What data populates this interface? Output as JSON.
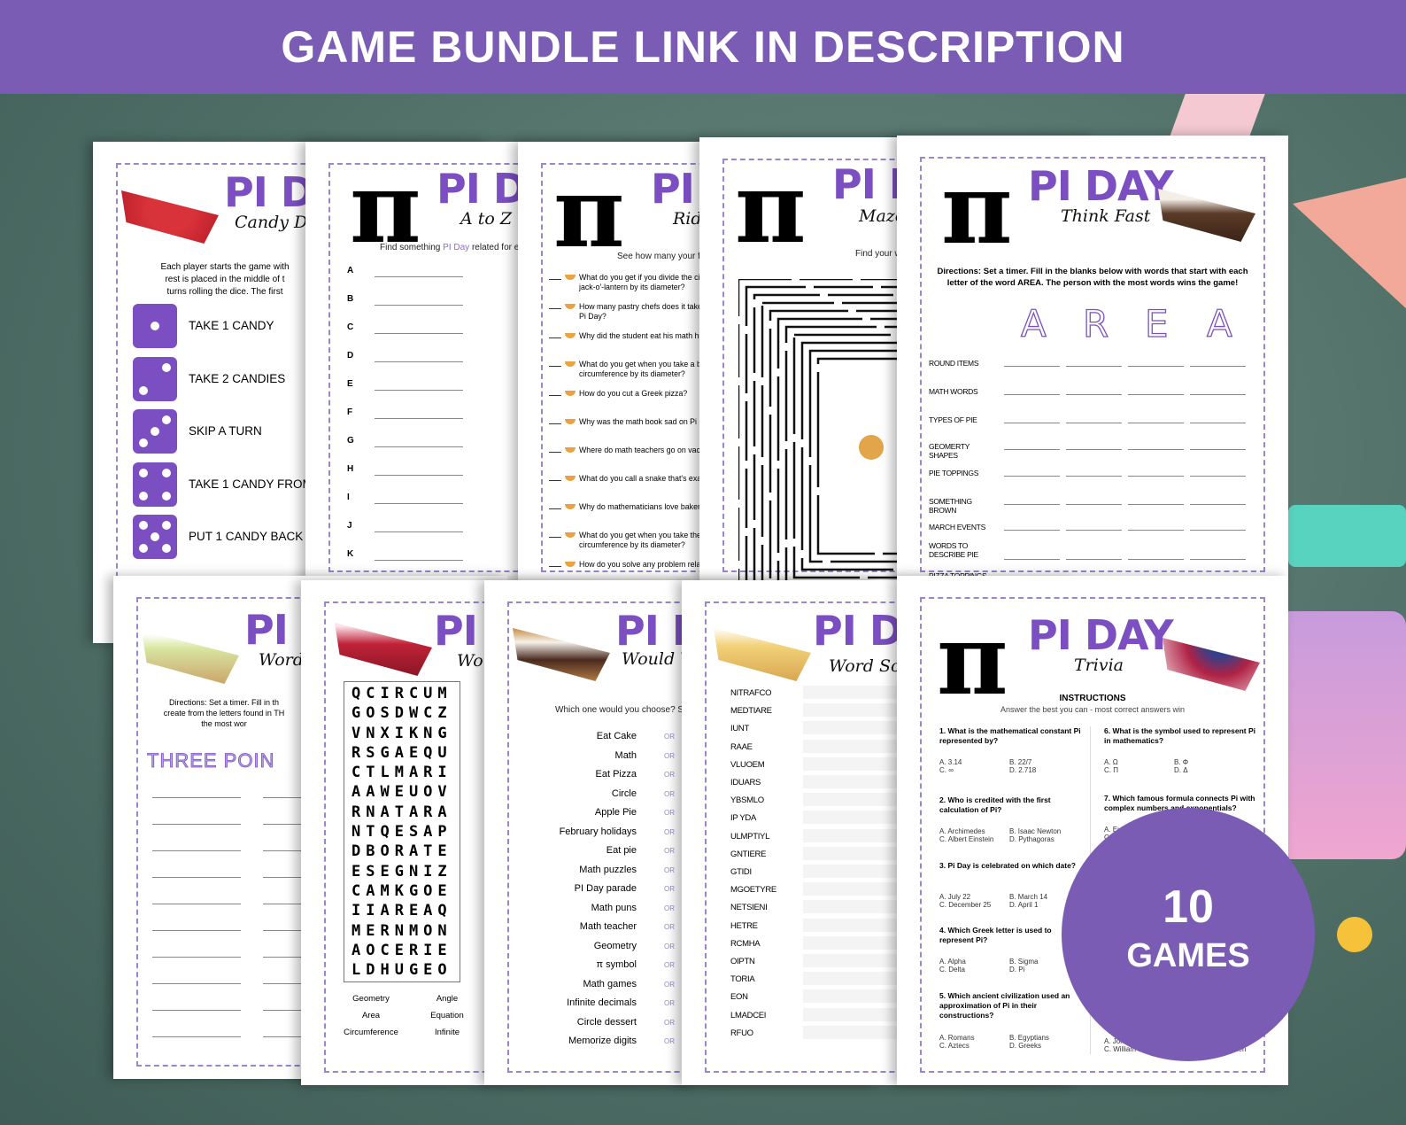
{
  "banner": {
    "text": "GAME BUNDLE LINK IN DESCRIPTION"
  },
  "badge": {
    "number": "10",
    "label": "GAMES"
  },
  "colors": {
    "banner": "#7b5cb5",
    "accent": "#7b4fc2",
    "background": "#4f6f67"
  },
  "icons": [
    "pi-symbol",
    "pie-slice-icon",
    "dice-icon",
    "maze",
    "calculator",
    "ruler",
    "push-pin"
  ],
  "candy_dice": {
    "title": "PI DAY",
    "subtitle": "Candy Dice",
    "intro": [
      "Each player starts the game with",
      "rest is placed in the middle of t",
      "turns rolling the dice. The first"
    ],
    "rules": [
      "TAKE 1 CANDY",
      "TAKE 2 CANDIES",
      "SKIP A TURN",
      "TAKE 1 CANDY FROM",
      "PUT 1 CANDY BACK"
    ]
  },
  "a_to_z": {
    "title": "PI DAY",
    "subtitle": "A to Z Ga",
    "intro_pre": "Find something ",
    "intro_hl": "PI Day",
    "intro_post": " related for e",
    "letters": [
      "A",
      "B",
      "C",
      "D",
      "E",
      "F",
      "G",
      "H",
      "I",
      "J",
      "K"
    ]
  },
  "riddles": {
    "title": "PI",
    "subtitle": "Riddl",
    "intro": "See how many your friend",
    "items": [
      "What do you get if you divide the circ|jack-o'-lantern by its diameter?",
      "How many pastry chefs does it take t|Pi Day?",
      "Why did the student eat his math ho",
      "What do you get when you take a bo|circumference by its diameter?",
      "How do you cut a Greek pizza?",
      "Why was the math book sad on Pi Da",
      "Where do math teachers go on vacat",
      "What do you call a snake that's exac",
      "Why do mathematicians love bakeri",
      "What do you get when you take the s|circumference by its diameter?",
      "How do you solve any problem relate"
    ]
  },
  "maze": {
    "title": "PI D",
    "subtitle": "Maze G",
    "intro": "Find your wa"
  },
  "think_fast": {
    "title": "PI DAY",
    "subtitle": "Think Fast",
    "directions": "Directions: Set a timer. Fill in the blanks below with words that start with each letter of the word AREA. The person with the most words wins the game!",
    "letters": [
      "A",
      "R",
      "E",
      "A"
    ],
    "categories": [
      "ROUND ITEMS",
      "MATH WORDS",
      "TYPES OF PIE",
      "GEOMERTY SHAPES",
      "PIE TOPPINGS",
      "SOMETHING BROWN",
      "MARCH EVENTS",
      "WORDS TO DESCRIBE PIE",
      "PIZZA TOPPINGS"
    ]
  },
  "word_list": {
    "title": "PI",
    "subtitle": "Word Li",
    "directions": [
      "Directions: Set a timer. Fill in th",
      "create from the letters found in TH",
      "the most wor"
    ],
    "word": "THREE POIN"
  },
  "word_search": {
    "title": "PI",
    "subtitle": "Wor",
    "grid": [
      "QCIRCUM",
      "GOSDWCZ",
      "VNXIKNG",
      "RSGAEQU",
      "CTLMARI",
      "AAWEUOV",
      "RNATARA",
      "NTQESAP",
      "DBORATE",
      "ESEGNIZ",
      "CAMKGOE",
      "IIAREAQ",
      "MERNMON",
      "AOCERIE",
      "LDHUGEO"
    ],
    "words": [
      "Geometry",
      "Angle",
      "Area",
      "Equation",
      "Circumference",
      "Infinite"
    ]
  },
  "would_you": {
    "title": "PI D",
    "subtitle": "Would You",
    "intro": "Which one would you choose? S",
    "or": "OR",
    "options": [
      "Eat Cake",
      "Math",
      "Eat Pizza",
      "Circle",
      "Apple Pie",
      "February holidays",
      "Eat pie",
      "Math puzzles",
      "PI Day parade",
      "Math puns",
      "Math teacher",
      "Geometry",
      "π symbol",
      "Math games",
      "Infinite decimals",
      "Circle dessert",
      "Memorize digits"
    ]
  },
  "scramble": {
    "title": "PI DA",
    "subtitle": "Word Scra",
    "words": [
      "NITRAFCO",
      "MEDTIARE",
      "IUNT",
      "RAAE",
      "VLUOEM",
      "IDUARS",
      "YBSMLO",
      "IP YDA",
      "ULMPTIYL",
      "GNTIERE",
      "GTIDI",
      "MGOETYRE",
      "NETSIENI",
      "HETRE",
      "RCMHA",
      "OIPTN",
      "TORIA",
      "EON",
      "LMADCEI",
      "RFUO"
    ]
  },
  "trivia": {
    "title": "PI DAY",
    "subtitle": "Trivia",
    "instructions": "INSTRUCTIONS",
    "instructions_sub": "Answer the best you can - most correct answers win",
    "left": [
      {
        "q": "1. What is the mathematical constant Pi represented by?",
        "a": [
          "A. 3.14",
          "B. 22/7",
          "C. ∞",
          "D. 2.718"
        ]
      },
      {
        "q": "2. Who is credited with the first calculation of Pi?",
        "a": [
          "A. Archimedes",
          "B. Isaac Newton",
          "C. Albert Einstein",
          "D. Pythagoras"
        ]
      },
      {
        "q": "3. Pi Day is celebrated on which date?",
        "a": [
          "A. July 22",
          "B. March 14",
          "C. December 25",
          "D. April 1"
        ]
      },
      {
        "q": "4. Which Greek letter is used to represent Pi?",
        "a": [
          "A. Alpha",
          "B. Sigma",
          "C. Delta",
          "D. Pi"
        ]
      },
      {
        "q": "5. Which ancient civilization used an approximation of Pi in their constructions?",
        "a": [
          "A. Romans",
          "B. Egyptians",
          "C. Aztecs",
          "D. Greeks"
        ]
      }
    ],
    "right": [
      {
        "q": "6. What is the symbol used to represent Pi in mathematics?",
        "a": [
          "A. Ω",
          "B. Φ",
          "C. Π",
          "D. Δ"
        ]
      },
      {
        "q": "7. Which famous formula connects Pi with complex numbers and exponentials?",
        "a": [
          "A. Eul",
          "",
          "C.",
          ""
        ]
      }
    ],
    "last_answers": [
      "A. John Nas",
      "C. William Jones",
      "D. Ludolph van Ceulen"
    ]
  }
}
